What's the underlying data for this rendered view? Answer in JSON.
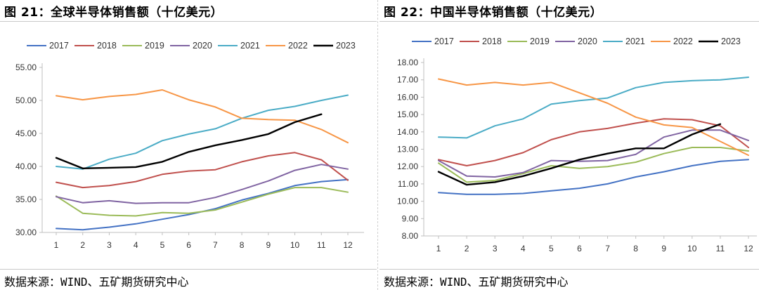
{
  "left": {
    "title": "图 21：全球半导体销售额（十亿美元）",
    "source": "数据来源：WIND、五矿期货研究中心"
  },
  "right": {
    "title": "图 22：中国半导体销售额（十亿美元）",
    "source": "数据来源：WIND、五矿期货研究中心"
  },
  "chart_data": [
    {
      "type": "line",
      "title": "图 21：全球半导体销售额（十亿美元）",
      "xlabel": "",
      "ylabel": "",
      "x": [
        1,
        2,
        3,
        4,
        5,
        6,
        7,
        8,
        9,
        10,
        11,
        12
      ],
      "ylim": [
        30,
        55
      ],
      "yticks": [
        "30.00",
        "35.00",
        "40.00",
        "45.00",
        "50.00",
        "55.00"
      ],
      "grid": false,
      "legend": "top",
      "series": [
        {
          "name": "2017",
          "color": "#4472C4",
          "values": [
            30.6,
            30.4,
            30.8,
            31.3,
            32.0,
            32.7,
            33.6,
            34.9,
            35.9,
            37.1,
            37.7,
            38.0
          ]
        },
        {
          "name": "2018",
          "color": "#C0504D",
          "values": [
            37.6,
            36.8,
            37.1,
            37.7,
            38.8,
            39.3,
            39.5,
            40.7,
            41.6,
            42.1,
            41.0,
            37.9
          ]
        },
        {
          "name": "2019",
          "color": "#9BBB59",
          "values": [
            35.5,
            32.9,
            32.6,
            32.5,
            33.0,
            32.9,
            33.4,
            34.6,
            35.8,
            36.8,
            36.8,
            36.1
          ]
        },
        {
          "name": "2020",
          "color": "#8064A2",
          "values": [
            35.4,
            34.5,
            34.8,
            34.4,
            34.5,
            34.5,
            35.3,
            36.5,
            37.8,
            39.4,
            40.3,
            39.6
          ]
        },
        {
          "name": "2021",
          "color": "#4BACC6",
          "values": [
            40.0,
            39.6,
            41.1,
            42.0,
            43.9,
            44.9,
            45.7,
            47.3,
            48.5,
            49.1,
            50.0,
            50.8
          ]
        },
        {
          "name": "2022",
          "color": "#F79646",
          "values": [
            50.7,
            50.1,
            50.6,
            50.9,
            51.6,
            50.1,
            49.0,
            47.3,
            47.1,
            47.0,
            45.6,
            43.6
          ]
        },
        {
          "name": "2023",
          "color": "#000000",
          "values": [
            41.3,
            39.7,
            39.8,
            39.9,
            40.7,
            42.2,
            43.2,
            44.0,
            44.9,
            46.7,
            47.9,
            null
          ]
        }
      ]
    },
    {
      "type": "line",
      "title": "图 22：中国半导体销售额（十亿美元）",
      "xlabel": "",
      "ylabel": "",
      "x": [
        1,
        2,
        3,
        4,
        5,
        6,
        7,
        8,
        9,
        10,
        11,
        12
      ],
      "ylim": [
        8,
        18
      ],
      "yticks": [
        "8.00",
        "9.00",
        "10.00",
        "11.00",
        "12.00",
        "13.00",
        "14.00",
        "15.00",
        "16.00",
        "17.00",
        "18.00"
      ],
      "grid": false,
      "legend": "top",
      "series": [
        {
          "name": "2017",
          "color": "#4472C4",
          "values": [
            10.5,
            10.4,
            10.4,
            10.45,
            10.6,
            10.75,
            11.0,
            11.4,
            11.7,
            12.05,
            12.3,
            12.4
          ]
        },
        {
          "name": "2018",
          "color": "#C0504D",
          "values": [
            12.4,
            12.05,
            12.35,
            12.8,
            13.55,
            14.0,
            14.2,
            14.5,
            14.75,
            14.7,
            14.35,
            13.1
          ]
        },
        {
          "name": "2019",
          "color": "#9BBB59",
          "values": [
            12.2,
            11.1,
            11.2,
            11.6,
            12.05,
            11.9,
            12.0,
            12.25,
            12.75,
            13.1,
            13.1,
            12.9
          ]
        },
        {
          "name": "2020",
          "color": "#8064A2",
          "values": [
            12.35,
            11.45,
            11.4,
            11.65,
            12.35,
            12.3,
            12.35,
            12.7,
            13.7,
            14.1,
            14.1,
            13.5
          ]
        },
        {
          "name": "2021",
          "color": "#4BACC6",
          "values": [
            13.7,
            13.65,
            14.35,
            14.75,
            15.6,
            15.8,
            15.95,
            16.55,
            16.85,
            16.95,
            17.0,
            17.15
          ]
        },
        {
          "name": "2022",
          "color": "#F79646",
          "values": [
            17.05,
            16.7,
            16.85,
            16.7,
            16.85,
            16.25,
            15.65,
            14.85,
            14.4,
            14.25,
            13.45,
            12.65
          ]
        },
        {
          "name": "2023",
          "color": "#000000",
          "values": [
            11.7,
            10.95,
            11.1,
            11.45,
            11.9,
            12.4,
            12.75,
            13.05,
            13.05,
            13.85,
            14.45,
            null
          ]
        }
      ]
    }
  ]
}
